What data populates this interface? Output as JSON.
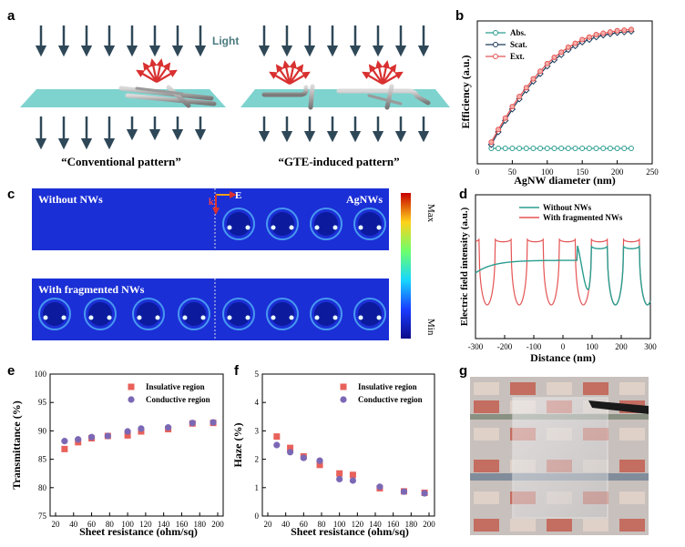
{
  "panels": {
    "a": {
      "label": "a",
      "light_label": "Light",
      "caption_left": "“Conventional pattern”",
      "caption_right": "“GTE-induced pattern”"
    },
    "b": {
      "label": "b",
      "xlabel": "AgNW diameter (nm)",
      "ylabel": "Efficiency (a.u.)",
      "xticks": [
        "0",
        "50",
        "100",
        "150",
        "200",
        "250"
      ],
      "legend": [
        "Abs.",
        "Scat.",
        "Ext."
      ]
    },
    "c": {
      "label": "c",
      "top_left": "Without NWs",
      "top_right": "AgNWs",
      "bottom_left": "With fragmented NWs",
      "k_label": "k",
      "e_label": "E",
      "scale_max": "Max",
      "scale_min": "Min"
    },
    "d": {
      "label": "d",
      "xlabel": "Distance (nm)",
      "ylabel": "Electric field intensity (a.u.)",
      "xticks": [
        "-300",
        "-200",
        "-100",
        "0",
        "100",
        "200",
        "300"
      ],
      "legend": [
        "Without NWs",
        "With fragmented NWs"
      ]
    },
    "e": {
      "label": "e",
      "xlabel": "Sheet resistance (ohm/sq)",
      "ylabel": "Transmittance (%)",
      "xticks": [
        "20",
        "40",
        "60",
        "80",
        "100",
        "120",
        "140",
        "160",
        "180",
        "200"
      ],
      "yticks": [
        "75",
        "80",
        "85",
        "90",
        "95",
        "100"
      ],
      "legend": [
        "Insulative region",
        "Conductive region"
      ]
    },
    "f": {
      "label": "f",
      "xlabel": "Sheet resistance (ohm/sq)",
      "ylabel": "Haze (%)",
      "xticks": [
        "20",
        "40",
        "60",
        "80",
        "100",
        "120",
        "140",
        "160",
        "180",
        "200"
      ],
      "yticks": [
        "0",
        "1",
        "2",
        "3",
        "4",
        "5"
      ],
      "legend": [
        "Insulative region",
        "Conductive region"
      ]
    },
    "g": {
      "label": "g"
    }
  },
  "colors": {
    "accent_teal": "#2a9d8f",
    "accent_red": "#e55353",
    "square_red": "#e8615a",
    "circle_purple": "#7b68b5",
    "arrow_dark": "#2f4858",
    "substrate": "#7fd3cf"
  },
  "chart_data": [
    {
      "id": "b",
      "type": "line",
      "xlim": [
        0,
        250
      ],
      "x": [
        20,
        30,
        40,
        50,
        60,
        70,
        80,
        90,
        100,
        110,
        120,
        130,
        140,
        150,
        160,
        170,
        180,
        190,
        200,
        210,
        220
      ],
      "series": [
        {
          "name": "Abs.",
          "values": [
            0.05,
            0.05,
            0.05,
            0.05,
            0.05,
            0.05,
            0.05,
            0.05,
            0.05,
            0.05,
            0.05,
            0.05,
            0.05,
            0.05,
            0.05,
            0.05,
            0.05,
            0.05,
            0.05,
            0.05,
            0.05
          ]
        },
        {
          "name": "Scat.",
          "values": [
            0.08,
            0.18,
            0.27,
            0.36,
            0.44,
            0.51,
            0.58,
            0.64,
            0.7,
            0.75,
            0.79,
            0.83,
            0.86,
            0.89,
            0.91,
            0.93,
            0.945,
            0.955,
            0.965,
            0.97,
            0.975
          ]
        },
        {
          "name": "Ext.",
          "values": [
            0.1,
            0.2,
            0.29,
            0.38,
            0.46,
            0.53,
            0.6,
            0.66,
            0.72,
            0.77,
            0.81,
            0.85,
            0.88,
            0.91,
            0.93,
            0.95,
            0.96,
            0.97,
            0.98,
            0.985,
            0.99
          ]
        }
      ]
    },
    {
      "id": "d",
      "type": "line",
      "xlim": [
        -300,
        300
      ],
      "series": [
        {
          "name": "Without NWs",
          "note": "smooth baseline rising from left, modulated oscillation after x=50"
        },
        {
          "name": "With fragmented NWs",
          "note": "periodic oscillations across full range"
        }
      ]
    },
    {
      "id": "e",
      "type": "scatter",
      "xlim": [
        20,
        200
      ],
      "ylim": [
        75,
        100
      ],
      "series": [
        {
          "name": "Insulative region",
          "x": [
            30,
            45,
            60,
            78,
            100,
            115,
            145,
            172,
            195
          ],
          "values": [
            86.8,
            88.0,
            88.7,
            89.1,
            89.2,
            89.9,
            90.3,
            91.3,
            91.4
          ]
        },
        {
          "name": "Conductive region",
          "x": [
            30,
            45,
            60,
            78,
            100,
            115,
            145,
            172,
            195
          ],
          "values": [
            88.2,
            88.5,
            88.9,
            89.1,
            89.9,
            90.4,
            90.6,
            91.4,
            91.5
          ]
        }
      ]
    },
    {
      "id": "f",
      "type": "scatter",
      "xlim": [
        20,
        200
      ],
      "ylim": [
        0,
        5
      ],
      "series": [
        {
          "name": "Insulative region",
          "x": [
            30,
            45,
            60,
            78,
            100,
            115,
            145,
            172,
            195
          ],
          "values": [
            2.8,
            2.4,
            2.1,
            1.8,
            1.5,
            1.45,
            0.98,
            0.87,
            0.82
          ]
        },
        {
          "name": "Conductive region",
          "x": [
            30,
            45,
            60,
            78,
            100,
            115,
            145,
            172,
            195
          ],
          "values": [
            2.5,
            2.25,
            2.05,
            1.95,
            1.3,
            1.25,
            1.03,
            0.86,
            0.8
          ]
        }
      ]
    }
  ]
}
